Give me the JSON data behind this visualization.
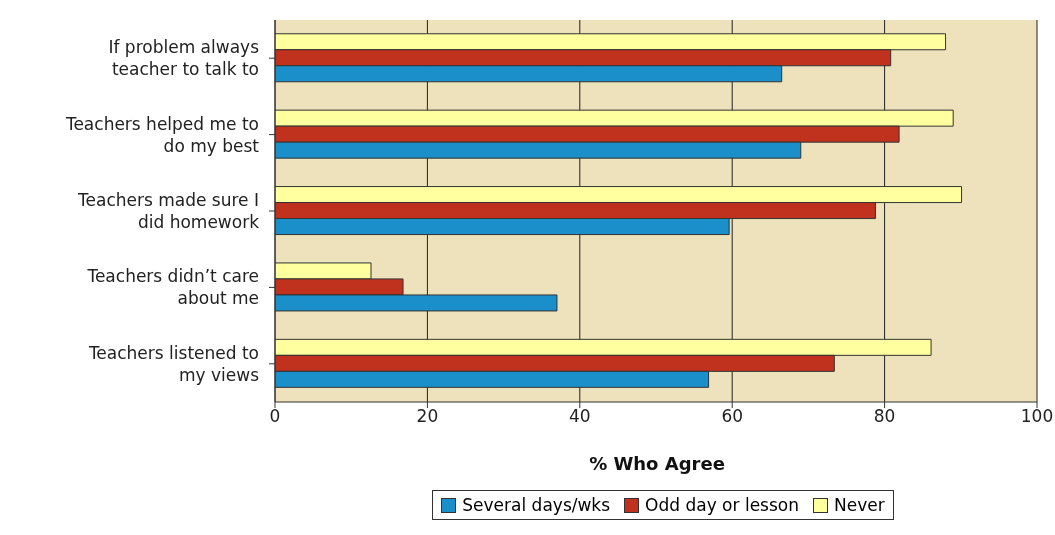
{
  "chart_data": {
    "type": "bar",
    "orientation": "horizontal",
    "xlabel": "% Who Agree",
    "categories": [
      "If problem always teacher to talk to",
      "Teachers helped me to do my best",
      "Teachers made sure I did homework",
      "Teachers didn’t care about me",
      "Teachers listened to my views"
    ],
    "series": [
      {
        "name": "Several days/wks",
        "color": "#1a8fc9",
        "values": [
          66.5,
          69,
          59.6,
          37,
          56.9
        ]
      },
      {
        "name": "Odd day or lesson",
        "color": "#c0321e",
        "values": [
          80.8,
          81.9,
          78.8,
          16.8,
          73.4
        ]
      },
      {
        "name": "Never",
        "color": "#ffffa0",
        "values": [
          88,
          89,
          90.1,
          12.6,
          86.1
        ]
      }
    ],
    "xlim": [
      0,
      100
    ],
    "xticks": [
      0,
      20,
      40,
      60,
      80,
      100
    ],
    "grid": "x",
    "legend": "bottom"
  }
}
